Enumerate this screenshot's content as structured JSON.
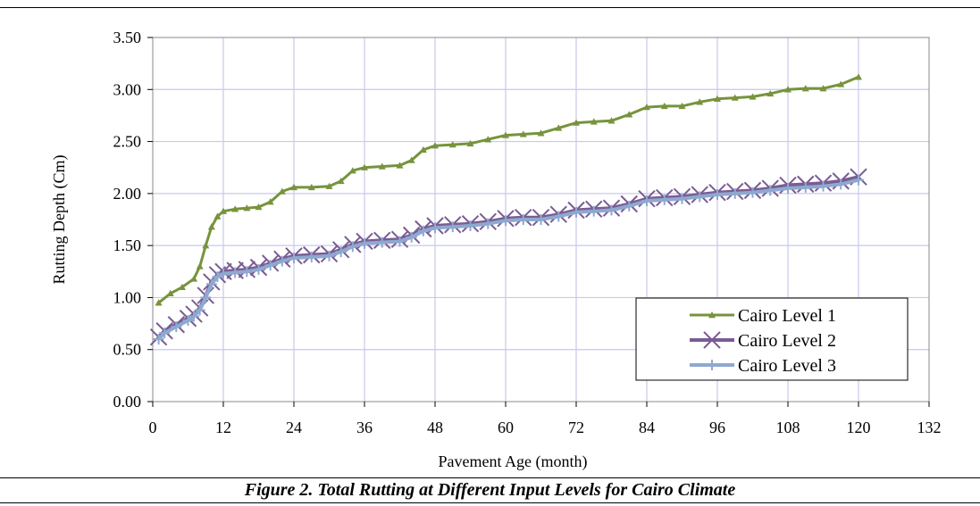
{
  "figure": {
    "caption": "Figure 2. Total Rutting at Different Input Levels for Cairo Climate"
  },
  "chart_data": {
    "type": "line",
    "xlabel": "Pavement Age (month)",
    "ylabel": "Rutting Depth (Cm)",
    "xlim": [
      0,
      132
    ],
    "ylim": [
      0,
      3.5
    ],
    "xticks": [
      0,
      12,
      24,
      36,
      48,
      60,
      72,
      84,
      96,
      108,
      120,
      132
    ],
    "yticks": [
      0,
      0.5,
      1.0,
      1.5,
      2.0,
      2.5,
      3.0,
      3.5
    ],
    "xtick_labels": [
      "0",
      "12",
      "24",
      "36",
      "48",
      "60",
      "72",
      "84",
      "96",
      "108",
      "120",
      "132"
    ],
    "ytick_labels": [
      "0.00",
      "0.50",
      "1.00",
      "1.50",
      "2.00",
      "2.50",
      "3.00",
      "3.50"
    ],
    "grid": true,
    "legend_position": "bottom-right",
    "series": [
      {
        "name": "Cairo Level 1",
        "color": "#77933C",
        "marker": "triangle",
        "x": [
          1,
          3,
          5,
          7,
          8,
          9,
          10,
          11,
          12,
          14,
          16,
          18,
          20,
          22,
          24,
          27,
          30,
          32,
          34,
          36,
          39,
          42,
          44,
          46,
          48,
          51,
          54,
          57,
          60,
          63,
          66,
          69,
          72,
          75,
          78,
          81,
          84,
          87,
          90,
          93,
          96,
          99,
          102,
          105,
          108,
          111,
          114,
          117,
          120
        ],
        "y": [
          0.95,
          1.04,
          1.1,
          1.18,
          1.3,
          1.5,
          1.68,
          1.78,
          1.83,
          1.85,
          1.86,
          1.87,
          1.92,
          2.02,
          2.06,
          2.06,
          2.07,
          2.12,
          2.22,
          2.25,
          2.26,
          2.27,
          2.32,
          2.42,
          2.46,
          2.47,
          2.48,
          2.52,
          2.56,
          2.57,
          2.58,
          2.63,
          2.68,
          2.69,
          2.7,
          2.76,
          2.83,
          2.84,
          2.84,
          2.88,
          2.91,
          2.92,
          2.93,
          2.96,
          3.0,
          3.01,
          3.01,
          3.05,
          3.12
        ]
      },
      {
        "name": "Cairo Level 2",
        "color": "#7A5C94",
        "marker": "x",
        "x": [
          1,
          2,
          4,
          6,
          7,
          8,
          9,
          10,
          11,
          12,
          14,
          16,
          18,
          20,
          22,
          24,
          27,
          30,
          32,
          34,
          36,
          39,
          42,
          44,
          46,
          48,
          51,
          54,
          57,
          60,
          63,
          66,
          69,
          72,
          75,
          78,
          81,
          84,
          87,
          90,
          93,
          96,
          99,
          102,
          105,
          108,
          111,
          114,
          117,
          120
        ],
        "y": [
          0.62,
          0.68,
          0.74,
          0.8,
          0.84,
          0.9,
          1.02,
          1.15,
          1.22,
          1.25,
          1.26,
          1.27,
          1.29,
          1.33,
          1.37,
          1.4,
          1.41,
          1.42,
          1.46,
          1.51,
          1.54,
          1.55,
          1.56,
          1.6,
          1.66,
          1.69,
          1.7,
          1.71,
          1.73,
          1.76,
          1.77,
          1.77,
          1.8,
          1.84,
          1.85,
          1.86,
          1.9,
          1.95,
          1.96,
          1.97,
          1.99,
          2.01,
          2.02,
          2.03,
          2.05,
          2.08,
          2.09,
          2.1,
          2.12,
          2.16
        ]
      },
      {
        "name": "Cairo Level 3",
        "color": "#8EA9D0",
        "marker": "plus",
        "x": [
          1,
          2,
          4,
          6,
          7,
          8,
          9,
          10,
          11,
          12,
          14,
          16,
          18,
          20,
          22,
          24,
          27,
          30,
          32,
          34,
          36,
          39,
          42,
          44,
          46,
          48,
          51,
          54,
          57,
          60,
          63,
          66,
          69,
          72,
          75,
          78,
          81,
          84,
          87,
          90,
          93,
          96,
          99,
          102,
          105,
          108,
          111,
          114,
          117,
          120
        ],
        "y": [
          0.6,
          0.66,
          0.72,
          0.78,
          0.82,
          0.88,
          1.0,
          1.13,
          1.2,
          1.23,
          1.24,
          1.25,
          1.27,
          1.31,
          1.35,
          1.38,
          1.39,
          1.4,
          1.44,
          1.49,
          1.52,
          1.53,
          1.54,
          1.58,
          1.64,
          1.67,
          1.68,
          1.69,
          1.71,
          1.74,
          1.75,
          1.75,
          1.78,
          1.82,
          1.83,
          1.84,
          1.88,
          1.93,
          1.94,
          1.95,
          1.97,
          1.99,
          2.0,
          2.01,
          2.03,
          2.05,
          2.06,
          2.07,
          2.09,
          2.13
        ]
      }
    ]
  }
}
